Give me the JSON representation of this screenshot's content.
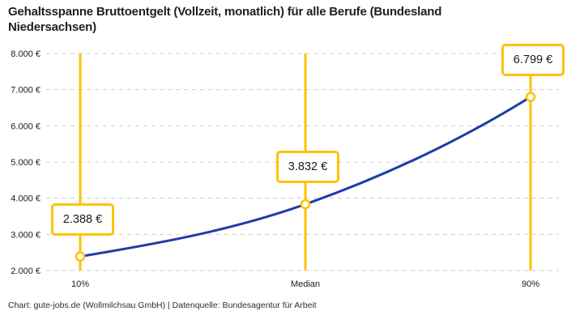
{
  "header": {
    "title": "Gehaltsspanne Bruttoentgelt (Vollzeit, monatlich) für alle Berufe (Bundesland Niedersachsen)",
    "title_lines": [
      "Gehaltsspanne Bruttoentgelt (Vollzeit, monatlich) für alle Berufe (Bundesland",
      "Niedersachsen)"
    ]
  },
  "chart_data": {
    "type": "line",
    "title": "Gehaltsspanne Bruttoentgelt (Vollzeit, monatlich) für alle Berufe (Bundesland Niedersachsen)",
    "categories": [
      "10%",
      "Median",
      "90%"
    ],
    "series": [
      {
        "name": "Bruttoentgelt",
        "values": [
          2388,
          3832,
          6799
        ]
      }
    ],
    "point_labels": [
      "2.388 €",
      "3.832 €",
      "6.799 €"
    ],
    "xlabel": "",
    "ylabel": "",
    "ylim": [
      2000,
      8000
    ],
    "ytick_step": 1000,
    "ytick_labels": [
      "2.000 €",
      "3.000 €",
      "4.000 €",
      "5.000 €",
      "6.000 €",
      "7.000 €",
      "8.000 €"
    ],
    "grid": "horizontal-dashed",
    "legend": "none",
    "colors": {
      "line": "#1f3ca6",
      "accent": "#fdc300",
      "grid": "#cccccc",
      "text": "#1a1a1a",
      "box_bg": "#ffffff"
    }
  },
  "footer": {
    "attribution": "Chart: gute-jobs.de (Wollmilchsau GmbH) | Datenquelle: Bundesagentur für Arbeit"
  }
}
